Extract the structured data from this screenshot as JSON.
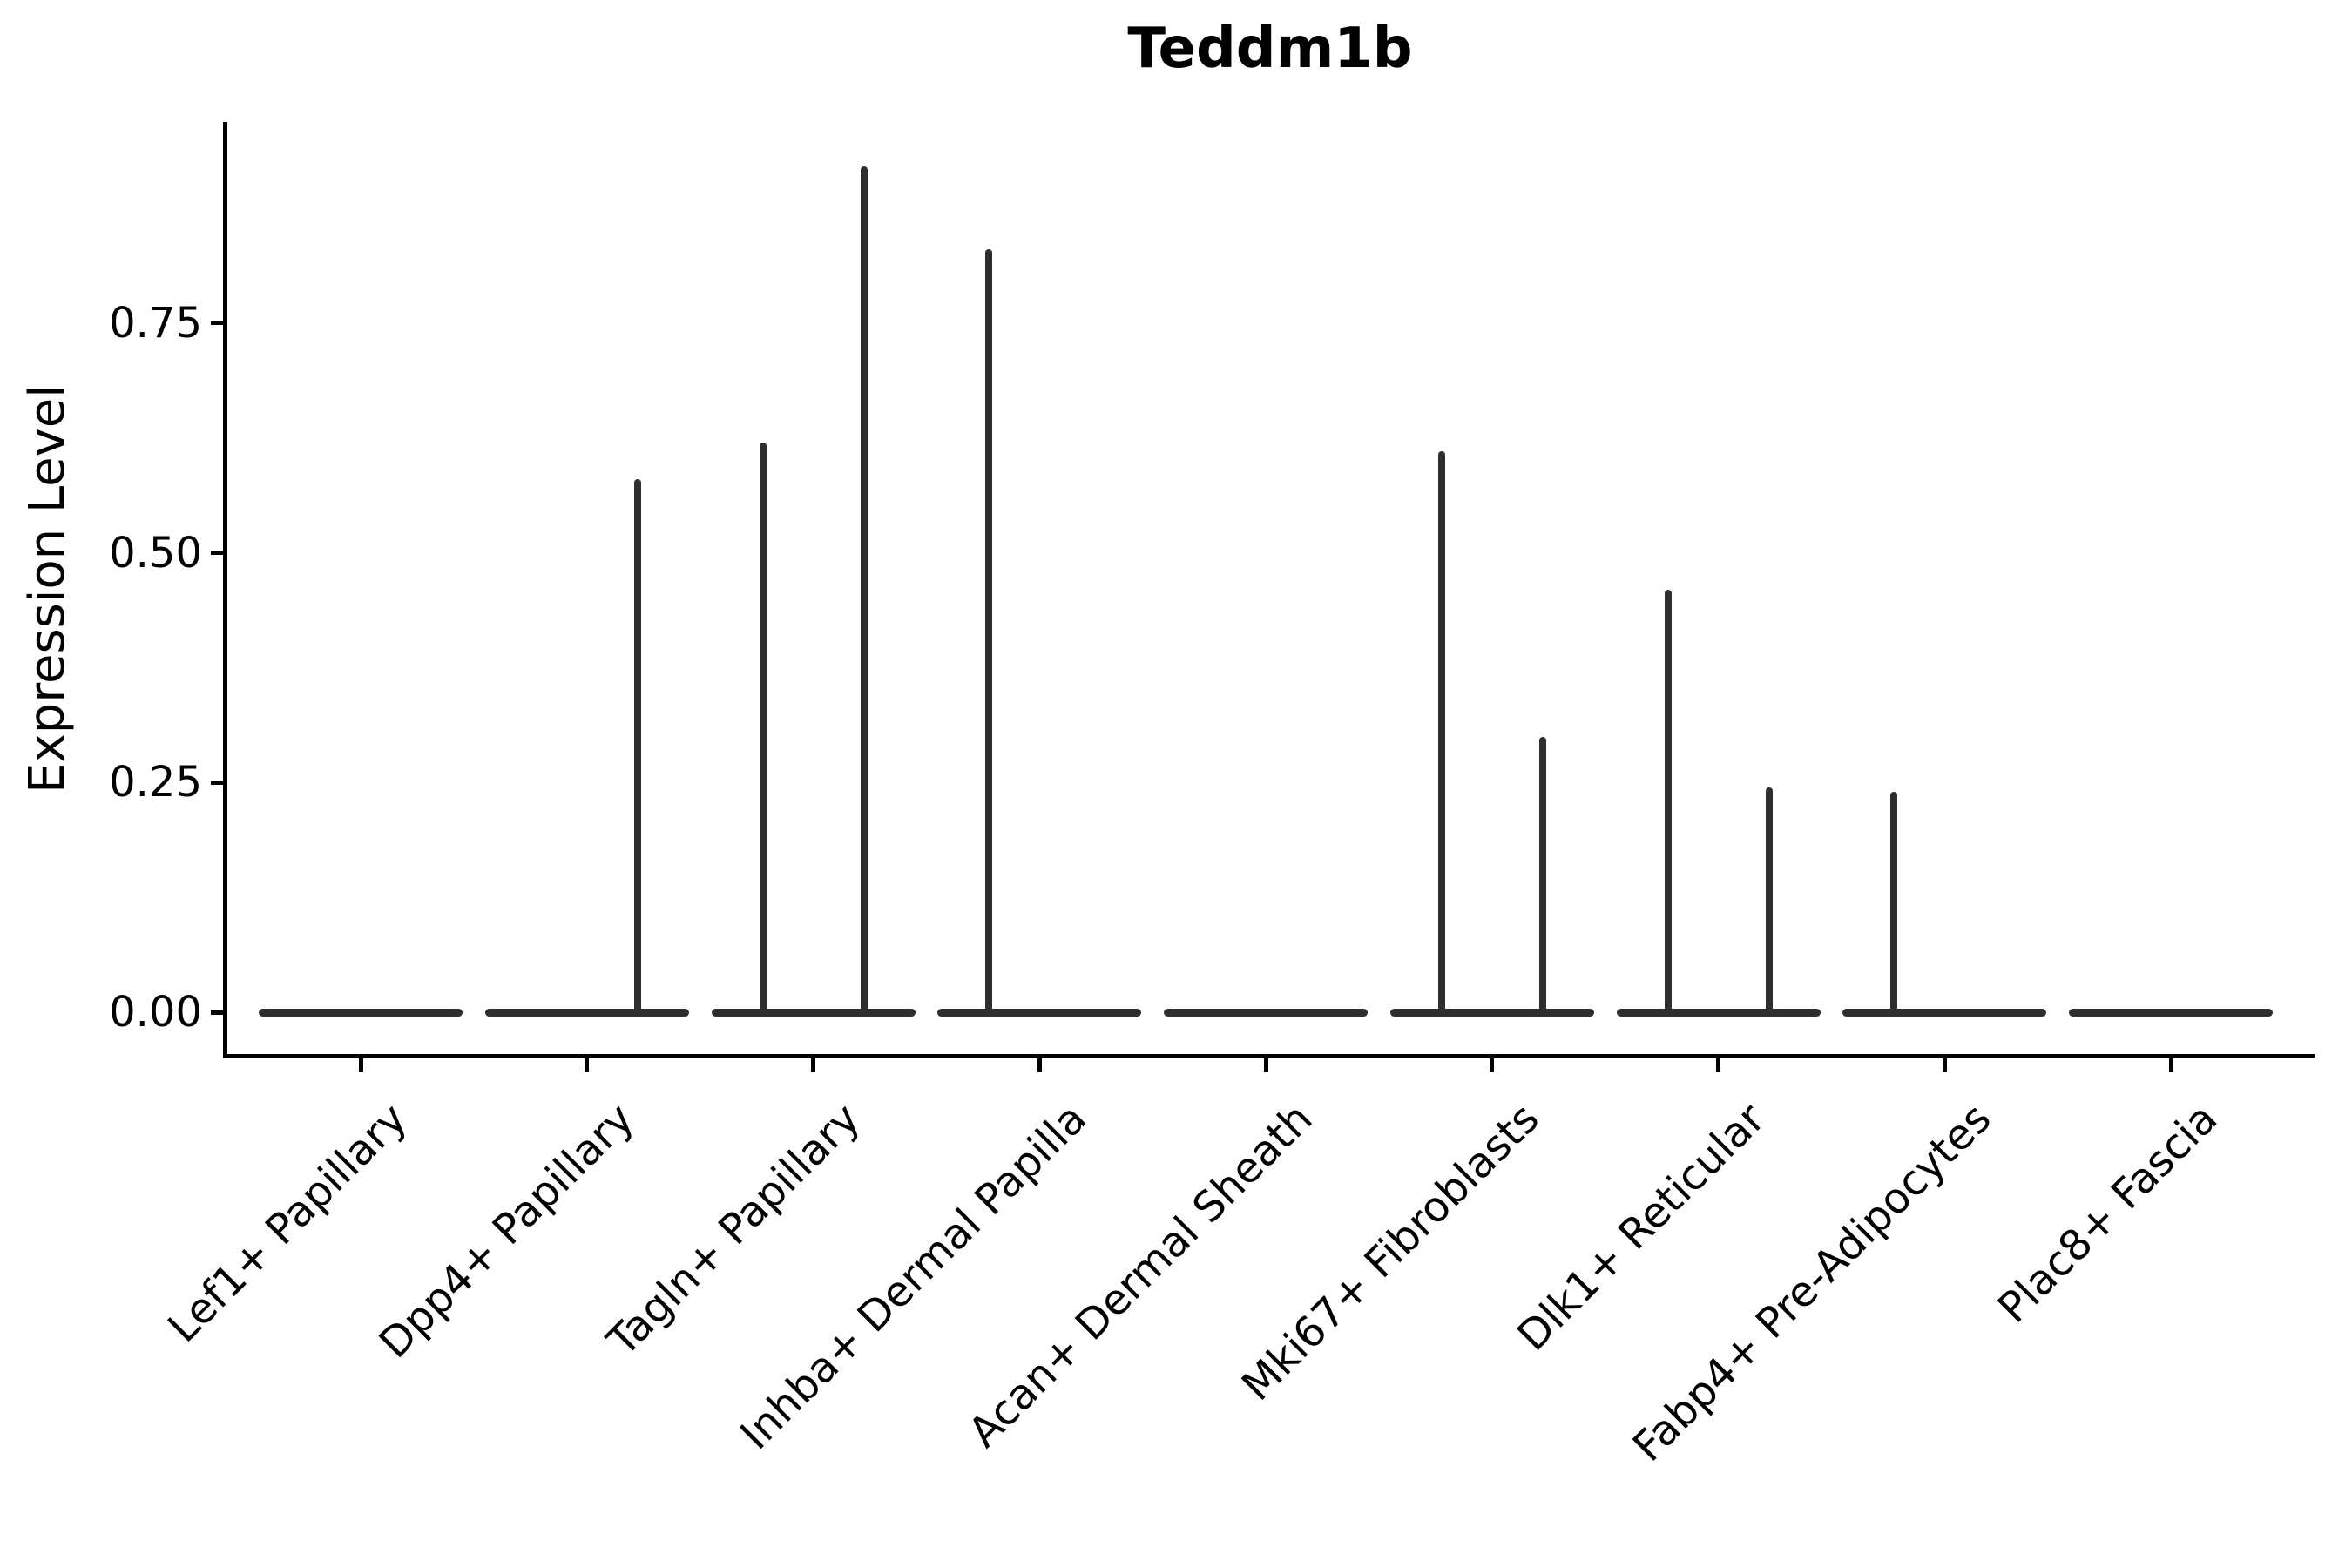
{
  "title": "Teddm1b",
  "y_axis": {
    "label": "Expression Level",
    "tick_labels": [
      "0.00",
      "0.25",
      "0.50",
      "0.75"
    ],
    "tick_values": [
      0,
      0.25,
      0.5,
      0.75
    ]
  },
  "x_axis": {
    "categories": [
      "Lef1+ Papillary",
      "Dpp4+ Papillary",
      "Tagln+ Papillary",
      "Inhba+ Dermal Papilla",
      "Acan+ Dermal Sheath",
      "Mki67+ Fibroblasts",
      "Dlk1+ Reticular",
      "Fabp4+ Pre-Adipocytes",
      "Plac8+ Fascia"
    ]
  },
  "chart_data": {
    "type": "violin",
    "title": "Teddm1b",
    "xlabel": "",
    "ylabel": "Expression Level",
    "ylim": [
      0,
      0.97
    ],
    "yticks": [
      0,
      0.25,
      0.5,
      0.75
    ],
    "ytick_labels": [
      "0.00",
      "0.25",
      "0.50",
      "0.75"
    ],
    "grid": false,
    "legend": "none",
    "violin_color": "#2e2e2e",
    "axis_color": "#000000",
    "background": "#ffffff",
    "categories": [
      "Lef1+ Papillary",
      "Dpp4+ Papillary",
      "Tagln+ Papillary",
      "Inhba+ Dermal Papilla",
      "Acan+ Dermal Sheath",
      "Mki67+ Fibroblasts",
      "Dlk1+ Reticular",
      "Fabp4+ Pre-Adipocytes",
      "Plac8+ Fascia"
    ],
    "violins": [
      {
        "category": "Lef1+ Papillary",
        "body": "flat-at-zero",
        "spikes": []
      },
      {
        "category": "Dpp4+ Papillary",
        "body": "flat-at-zero",
        "spikes": [
          {
            "side": "right",
            "value": 0.58
          }
        ]
      },
      {
        "category": "Tagln+ Papillary",
        "body": "flat-at-zero",
        "spikes": [
          {
            "side": "left",
            "value": 0.62
          },
          {
            "side": "right",
            "value": 0.92
          }
        ]
      },
      {
        "category": "Inhba+ Dermal Papilla",
        "body": "flat-at-zero",
        "spikes": [
          {
            "side": "left",
            "value": 0.83
          }
        ]
      },
      {
        "category": "Acan+ Dermal Sheath",
        "body": "flat-at-zero",
        "spikes": []
      },
      {
        "category": "Mki67+ Fibroblasts",
        "body": "flat-at-zero",
        "spikes": [
          {
            "side": "left",
            "value": 0.61
          },
          {
            "side": "right",
            "value": 0.3
          }
        ]
      },
      {
        "category": "Dlk1+ Reticular",
        "body": "flat-at-zero",
        "spikes": [
          {
            "side": "left",
            "value": 0.46
          },
          {
            "side": "right",
            "value": 0.245
          }
        ]
      },
      {
        "category": "Fabp4+ Pre-Adipocytes",
        "body": "flat-at-zero",
        "spikes": [
          {
            "side": "left",
            "value": 0.24
          }
        ]
      },
      {
        "category": "Plac8+ Fascia",
        "body": "flat-at-zero",
        "spikes": []
      }
    ]
  }
}
